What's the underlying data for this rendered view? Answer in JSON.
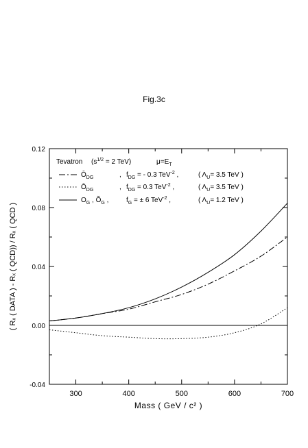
{
  "figure_title": "Fig.3c",
  "chart_data": {
    "type": "line",
    "title": "",
    "xlabel": "Mass ( GeV / c² )",
    "ylabel": "( Rₓ ( DATA ) - Rₓ ( QCD)) / Rₓ ( QCD )",
    "xlim": [
      250,
      700
    ],
    "ylim": [
      -0.04,
      0.12
    ],
    "xticks": [
      300,
      400,
      500,
      600,
      700
    ],
    "xtick_labels": [
      "300",
      "400",
      "500",
      "600",
      "700"
    ],
    "yticks": [
      -0.04,
      0.0,
      0.04,
      0.08,
      0.12
    ],
    "ytick_labels": [
      "-0.04",
      "0.00",
      "0.04",
      "0.08",
      "0.12"
    ],
    "grid": false,
    "legend_position": "top-left",
    "legend_header": {
      "experiment": "Tevatron",
      "energy": "(s¹ᐟ² = 2 TeV)",
      "scale": "μ=Eₜ"
    },
    "x": [
      250,
      300,
      350,
      400,
      450,
      500,
      550,
      600,
      650,
      700
    ],
    "series": [
      {
        "operator": "Ō",
        "operator_sub": "DG",
        "coupling": "f",
        "coupling_sub": "DG",
        "coupling_value": "= - 0.3 TeV",
        "coupling_exp": "-2",
        "lambda": "( Λ",
        "lambda_sub": "U",
        "lambda_value": "= 3.5 TeV )",
        "style": "dashdot",
        "values": [
          0.003,
          0.005,
          0.008,
          0.011,
          0.016,
          0.021,
          0.028,
          0.037,
          0.047,
          0.06
        ]
      },
      {
        "operator": "Ō",
        "operator_sub": "DG",
        "coupling": "f",
        "coupling_sub": "DG",
        "coupling_value": "=  0.3 TeV",
        "coupling_exp": "-2",
        "lambda": "( Λ",
        "lambda_sub": "U",
        "lambda_value": "= 3.5 TeV )",
        "style": "dotted",
        "values": [
          -0.003,
          -0.005,
          -0.007,
          -0.008,
          -0.009,
          -0.009,
          -0.008,
          -0.005,
          0.001,
          0.012
        ]
      },
      {
        "operator": "O",
        "operator_sub": "G",
        "operator2": "Õ",
        "operator2_sub": "G",
        "coupling": "f",
        "coupling_sub": "G",
        "coupling_value": "= ± 6  TeV",
        "coupling_exp": "-2",
        "lambda": "( Λ",
        "lambda_sub": "U",
        "lambda_value": "= 1.2 TeV )",
        "style": "solid",
        "values": [
          0.003,
          0.005,
          0.008,
          0.012,
          0.018,
          0.026,
          0.036,
          0.048,
          0.064,
          0.083
        ]
      }
    ],
    "reference_line": 0.0
  }
}
